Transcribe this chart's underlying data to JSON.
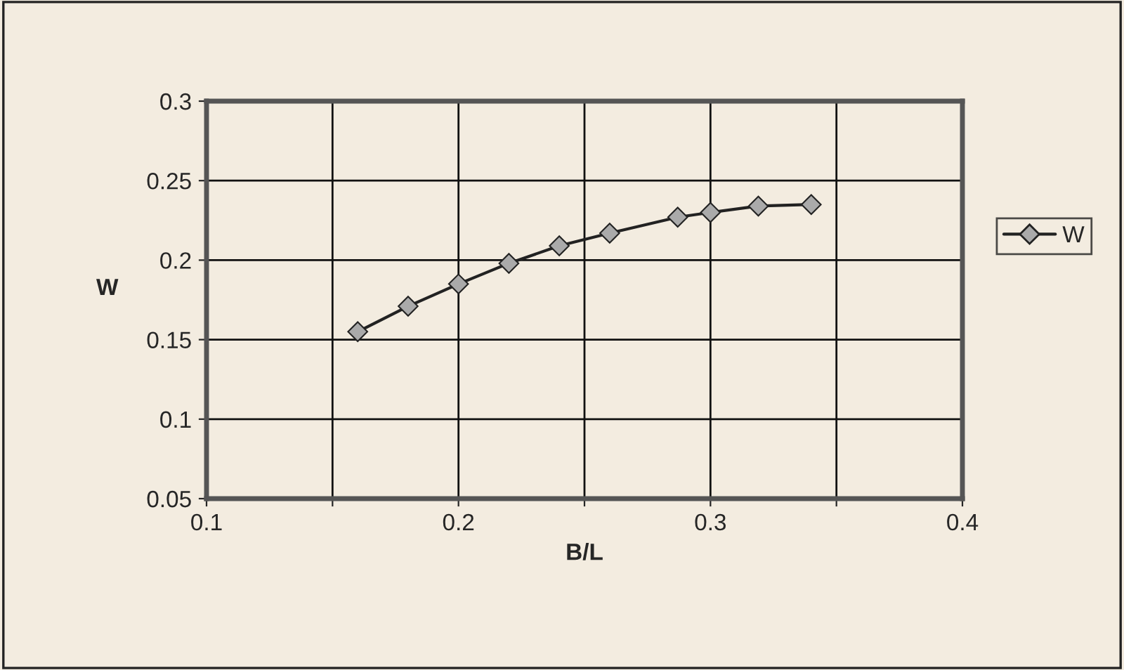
{
  "chart_data": {
    "type": "line",
    "xlabel": "B/L",
    "ylabel": "W",
    "x": [
      0.16,
      0.18,
      0.2,
      0.22,
      0.24,
      0.26,
      0.287,
      0.3,
      0.319,
      0.34
    ],
    "series": [
      {
        "name": "W",
        "color": "#222222",
        "values": [
          0.155,
          0.171,
          0.185,
          0.198,
          0.209,
          0.217,
          0.227,
          0.23,
          0.234,
          0.235
        ]
      }
    ],
    "xlim": [
      0.1,
      0.4
    ],
    "xticks": [
      0.1,
      {
        "value": 0.15,
        "label": null
      },
      0.2,
      {
        "value": 0.25,
        "label": null
      },
      0.3,
      {
        "value": 0.35,
        "label": null
      },
      0.4
    ],
    "ylim": [
      0.05,
      0.3
    ],
    "yticks": [
      0.05,
      0.1,
      0.15,
      0.2,
      0.25,
      0.3
    ],
    "grid": true,
    "legend": "right",
    "marker": "diamond",
    "line_style": "solid"
  }
}
